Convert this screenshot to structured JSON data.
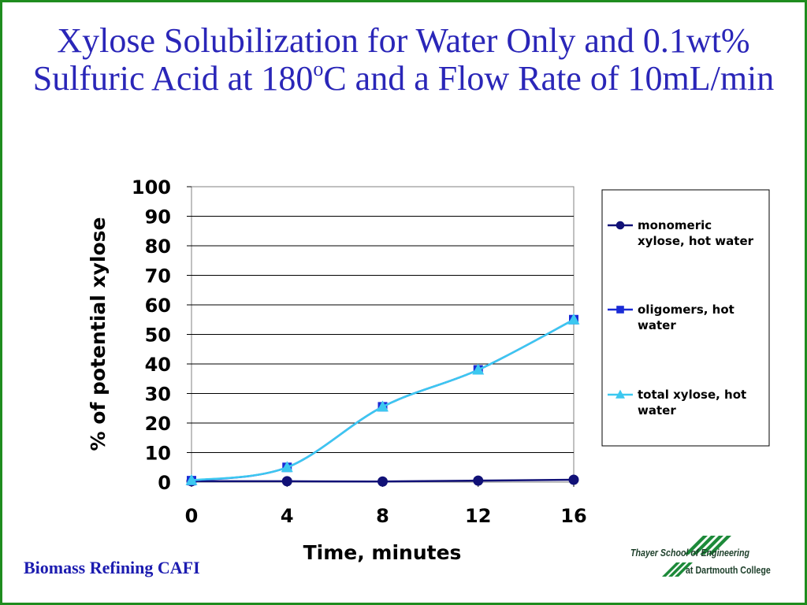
{
  "slide": {
    "title_part1": "Xylose Solubilization for Water Only and 0.1wt% Sulfuric Acid at 180",
    "title_sup": "o",
    "title_part2": "C and a Flow Rate of 10mL/min",
    "footer_left": "Biomass Refining CAFI",
    "logo_line1": "Thayer School of Engineering",
    "logo_line2": "at Dartmouth College",
    "frame_color": "#1e8c1e",
    "title_color": "#2a26b8"
  },
  "chart_data": {
    "type": "line",
    "title": "",
    "xlabel": "Time, minutes",
    "ylabel": "% of potential xylose",
    "x": [
      0,
      4,
      8,
      12,
      16
    ],
    "xlim": [
      0,
      16
    ],
    "ylim": [
      0,
      100
    ],
    "x_ticks": [
      "0",
      "4",
      "8",
      "12",
      "16"
    ],
    "y_ticks": [
      "0",
      "10",
      "20",
      "30",
      "40",
      "50",
      "60",
      "70",
      "80",
      "90",
      "100"
    ],
    "grid": "horizontal",
    "legend_position": "right",
    "series": [
      {
        "name": "monomeric xylose, hot water",
        "values": [
          0.3,
          0.3,
          0.2,
          0.5,
          0.8
        ],
        "color": "#111177",
        "marker": "circle"
      },
      {
        "name": "oligomers, hot water",
        "values": [
          0.5,
          5,
          25.5,
          38,
          55
        ],
        "color": "#1a2bd6",
        "marker": "square"
      },
      {
        "name": "total xylose, hot water",
        "values": [
          0.6,
          5,
          25.5,
          38,
          55
        ],
        "color": "#3cc8f0",
        "marker": "triangle"
      }
    ]
  }
}
